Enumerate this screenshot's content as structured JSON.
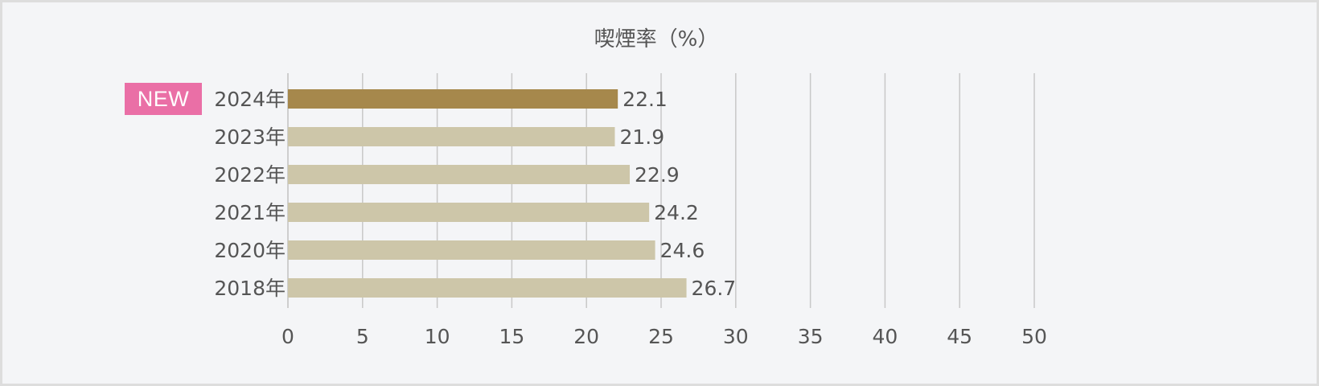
{
  "badge": {
    "label": "NEW",
    "color": "#ea6fa6"
  },
  "chart_data": {
    "type": "bar",
    "orientation": "horizontal",
    "title": "喫煙率（%）",
    "categories": [
      "2024年",
      "2023年",
      "2022年",
      "2021年",
      "2020年",
      "2018年"
    ],
    "values": [
      22.1,
      21.9,
      22.9,
      24.2,
      24.6,
      26.7
    ],
    "xlim": [
      0,
      50
    ],
    "xticks": [
      0,
      5,
      10,
      15,
      20,
      25,
      30,
      35,
      40,
      45,
      50
    ],
    "grid": true,
    "colors": {
      "highlight": "#a6884c",
      "default": "#cdc6a9",
      "grid": "#c8c8c8",
      "text": "#555555"
    },
    "highlight_category": "2024年"
  }
}
